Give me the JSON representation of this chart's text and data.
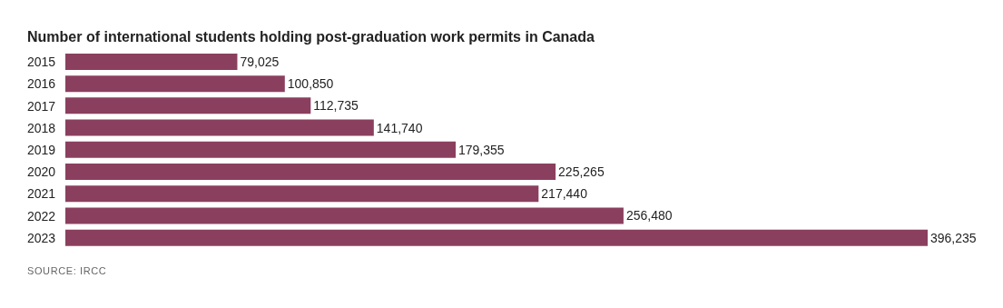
{
  "chart_data": {
    "type": "bar",
    "orientation": "horizontal",
    "title": "Number of international students holding post-graduation work permits in Canada",
    "categories": [
      "2015",
      "2016",
      "2017",
      "2018",
      "2019",
      "2020",
      "2021",
      "2022",
      "2023"
    ],
    "values": [
      79025,
      100850,
      112735,
      141740,
      179355,
      225265,
      217440,
      256480,
      396235
    ],
    "value_labels": [
      "79,025",
      "100,850",
      "112,735",
      "141,740",
      "179,355",
      "225,265",
      "217,440",
      "256,480",
      "396,235"
    ],
    "color": "#8b3f5f",
    "grid": false,
    "legend": false,
    "annotations": [
      "SOURCE: IRCC"
    ]
  }
}
